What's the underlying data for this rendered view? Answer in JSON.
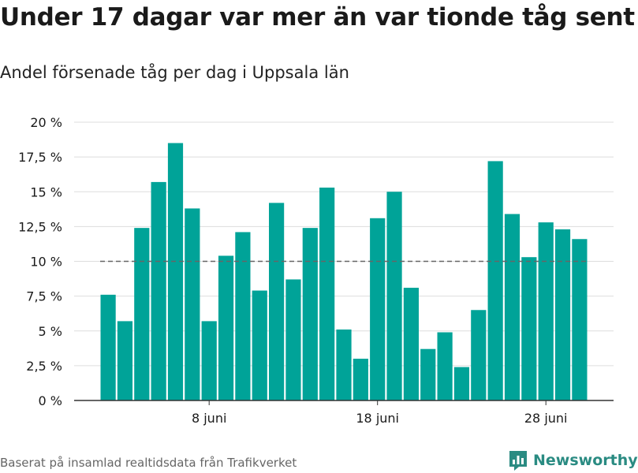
{
  "title": "Under 17 dagar var mer än var tionde tåg sent",
  "subtitle": "Andel försenade tåg per dag i Uppsala län",
  "source": "Baserat på insamlad realtidsdata från Trafikverket",
  "brand": {
    "name": "Newsworthy",
    "icon": "newsworthy-logo-icon",
    "color": "#2a8b82"
  },
  "colors": {
    "bar": "#00a398",
    "grid": "#dddddd",
    "reference": "#666666",
    "axis": "#333333",
    "text": "#1a1a1a"
  },
  "chart_data": {
    "type": "bar",
    "title": "Under 17 dagar var mer än var tionde tåg sent",
    "subtitle": "Andel försenade tåg per dag i Uppsala län",
    "xlabel": "",
    "ylabel": "",
    "x_start_day": 2,
    "values": [
      7.6,
      5.7,
      12.4,
      15.7,
      18.5,
      13.8,
      5.7,
      10.4,
      12.1,
      7.9,
      14.2,
      8.7,
      12.4,
      15.3,
      5.1,
      3.0,
      13.1,
      15.0,
      8.1,
      3.7,
      4.9,
      2.4,
      6.5,
      17.2,
      13.4,
      10.3,
      12.8,
      12.3,
      11.6
    ],
    "ylim": [
      0,
      20
    ],
    "yticks": [
      {
        "value": 0,
        "label": "0 %"
      },
      {
        "value": 2.5,
        "label": "2,5 %"
      },
      {
        "value": 5,
        "label": "5 %"
      },
      {
        "value": 7.5,
        "label": "7,5 %"
      },
      {
        "value": 10,
        "label": "10 %"
      },
      {
        "value": 12.5,
        "label": "12,5 %"
      },
      {
        "value": 15,
        "label": "15 %"
      },
      {
        "value": 17.5,
        "label": "17,5 %"
      },
      {
        "value": 20,
        "label": "20 %"
      }
    ],
    "xticks": [
      {
        "day": 8,
        "label": "8 juni"
      },
      {
        "day": 18,
        "label": "18 juni"
      },
      {
        "day": 28,
        "label": "28 juni"
      }
    ],
    "reference_line": {
      "value": 10,
      "style": "dashed"
    },
    "grid": true,
    "legend": false
  }
}
